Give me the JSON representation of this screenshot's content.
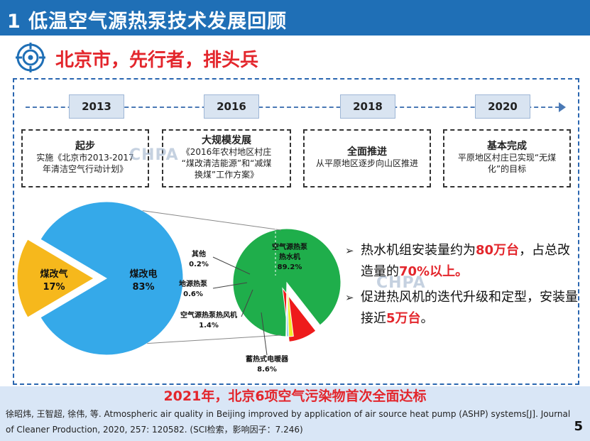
{
  "header": {
    "title": "1  低温空气源热泵技术发展回顾"
  },
  "section": {
    "icon": "target-icon",
    "title": "北京市，先行者，排头兵"
  },
  "timeline": {
    "years": [
      "2013",
      "2016",
      "2018",
      "2020"
    ],
    "stages": [
      {
        "heading": "起步",
        "lines": [
          "实施《北京市2013-2017",
          "年清洁空气行动计划》"
        ]
      },
      {
        "heading": "大规模发展",
        "lines": [
          "《2016年农村地区村庄",
          "“煤改清洁能源”和“减煤",
          "换煤”工作方案》"
        ]
      },
      {
        "heading": "全面推进",
        "lines": [
          "从平原地区逐步向山区推进"
        ]
      },
      {
        "heading": "基本完成",
        "lines": [
          "平原地区村庄已实现“无煤",
          "化”的目标"
        ]
      }
    ]
  },
  "watermarks": {
    "chpa1": "CHPA",
    "chpa2": "CHPA"
  },
  "chart_data": [
    {
      "type": "pie",
      "slices": [
        {
          "name": "煤改电",
          "value": 83,
          "label": "83%",
          "color": "#35a9e9"
        },
        {
          "name": "煤改气",
          "value": 17,
          "label": "17%",
          "color": "#f6b81c"
        }
      ]
    },
    {
      "type": "pie",
      "slices": [
        {
          "name": "空气源热泵热水机",
          "value": 89.2,
          "label": "89.2%",
          "color": "#1fae4b"
        },
        {
          "name": "蓄热式电暖器",
          "value": 8.6,
          "label": "8.6%",
          "color": "#ee1b1b"
        },
        {
          "name": "空气源热泵热风机",
          "value": 1.4,
          "label": "1.4%",
          "color": "#f0ec2a"
        },
        {
          "name": "地源热泵",
          "value": 0.6,
          "label": "0.6%",
          "color": "#7fc0ea"
        },
        {
          "name": "其他",
          "value": 0.2,
          "label": "0.2%",
          "color": "#9a9a9a"
        }
      ]
    }
  ],
  "bullets": {
    "b1_pre": "热水机组安装量约为",
    "b1_red": "80万台",
    "b1_mid": "，占总改造量的",
    "b1_red2": "70%以上。",
    "b2_pre": "促进热风机的迭代升级和定型，安装量接近",
    "b2_red": "5万台",
    "b2_post": "。"
  },
  "footer": {
    "highlight": "2021年，北京6项空气污染物首次全面达标",
    "citation": "徐昭炜, 王智超, 徐伟, 等. Atmospheric air quality in Beijing improved by application of air source heat pump (ASHP) systems[J]. Journal of Cleaner Production, 2020, 257: 120582. (SCI检索，影响因子：7.246)",
    "page": "5"
  }
}
